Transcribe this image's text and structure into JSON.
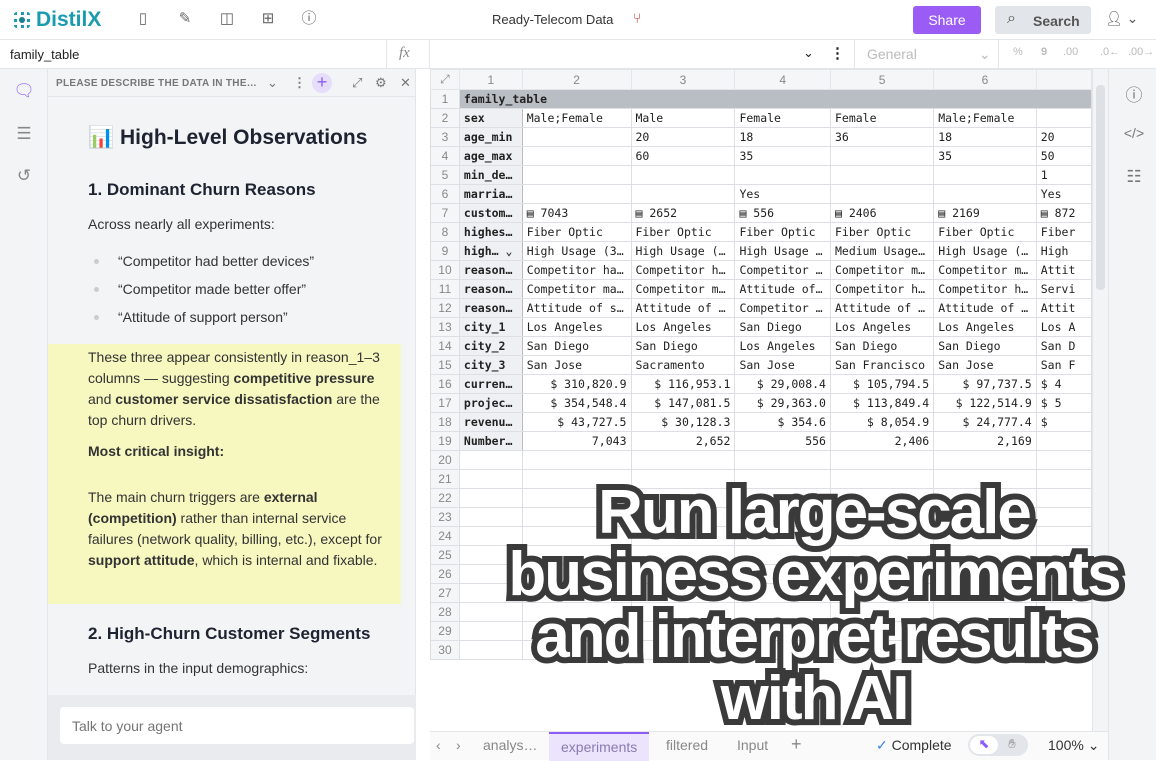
{
  "app": {
    "brand": "DistilX",
    "doc_title": "Ready-Telecom Data",
    "share_label": "Share",
    "search_label": "Search",
    "icons": [
      "file-icon",
      "edit-icon",
      "layout-icon",
      "add-box-icon",
      "help-icon"
    ],
    "accent": "#9b5cf6",
    "brand_color": "#1a9bb0"
  },
  "formula_bar": {
    "name_box": "family_table",
    "formula": "",
    "number_format": "General",
    "format_icons": [
      "%",
      "9",
      ".00",
      ".0←",
      ".00→"
    ]
  },
  "agent_panel": {
    "title": "PLEASE DESCRIBE THE DATA IN THE…",
    "heading": "High-Level Observations",
    "heading_emoji": "📊",
    "section1": "1. Dominant Churn Reasons",
    "intro": "Across nearly all experiments:",
    "bullets": [
      "“Competitor had better devices”",
      "“Competitor made better offer”",
      "“Attitude of support person”"
    ],
    "highlight_p1_a": "These three appear consistently in reason_1–3 columns — suggesting ",
    "highlight_p1_b": "competitive pressure",
    "highlight_p1_c": " and ",
    "highlight_p1_d": "customer service dissatisfaction",
    "highlight_p1_e": " are the top churn drivers.",
    "critical_label": "Most critical insight:",
    "p2_a": "The main churn triggers are ",
    "p2_b": "external (competition)",
    "p2_c": " rather than internal service failures (network quality, billing, etc.), except for ",
    "p2_d": "support attitude",
    "p2_e": ", which is internal and fixable.",
    "section2": "2. High-Churn Customer Segments",
    "intro2": "Patterns in the input demographics:",
    "chat_placeholder": "Talk to your agent"
  },
  "sheet": {
    "col_headers": [
      "1",
      "2",
      "3",
      "4",
      "5",
      "6",
      ""
    ],
    "rows": [
      [
        "family_table"
      ],
      [
        "sex",
        "Male;Female",
        "Male",
        "Female",
        "Female",
        "Male;Female",
        ""
      ],
      [
        "age_min",
        "",
        "20",
        "18",
        "36",
        "18",
        "20"
      ],
      [
        "age_max",
        "",
        "60",
        "35",
        "",
        "35",
        "50"
      ],
      [
        "min_de…",
        "",
        "",
        "",
        "",
        "",
        "1"
      ],
      [
        "marria…",
        "",
        "",
        "Yes",
        "",
        "",
        "Yes"
      ],
      [
        "custom…",
        "▤ 7043",
        "▤ 2652",
        "▤ 556",
        "▤ 2406",
        "▤ 2169",
        "▤ 872"
      ],
      [
        "highes…",
        "Fiber Optic",
        "Fiber Optic",
        "Fiber Optic",
        "Fiber Optic",
        "Fiber Optic",
        "Fiber"
      ],
      [
        "high…  ⌄",
        "High Usage (3…",
        "High Usage (…",
        "High Usage …",
        "Medium Usage…",
        "High Usage (…",
        "High"
      ],
      [
        "reason…",
        "Competitor ha…",
        "Competitor h…",
        "Competitor …",
        "Competitor m…",
        "Competitor m…",
        "Attit"
      ],
      [
        "reason…",
        "Competitor ma…",
        "Competitor m…",
        "Attitude of…",
        "Competitor h…",
        "Competitor h…",
        "Servi"
      ],
      [
        "reason…",
        "Attitude of s…",
        "Attitude of …",
        "Competitor …",
        "Attitude of …",
        "Attitude of …",
        "Attit"
      ],
      [
        "city_1",
        "Los Angeles",
        "Los Angeles",
        "San Diego",
        "Los Angeles",
        "Los Angeles",
        "Los A"
      ],
      [
        "city_2",
        "San Diego",
        "San Diego",
        "Los Angeles",
        "San Diego",
        "San Diego",
        "San D"
      ],
      [
        "city_3",
        "San Jose",
        "Sacramento",
        "San Jose",
        "San Francisco",
        "San Jose",
        "San F"
      ],
      [
        "curren…",
        "$ 310,820.9",
        "$ 116,953.1",
        "$ 29,008.4",
        "$ 105,794.5",
        "$ 97,737.5",
        "$ 4"
      ],
      [
        "projec…",
        "$ 354,548.4",
        "$ 147,081.5",
        "$ 29,363.0",
        "$ 113,849.4",
        "$ 122,514.9",
        "$ 5"
      ],
      [
        "revenu…",
        "$ 43,727.5",
        "$ 30,128.3",
        "$ 354.6",
        "$ 8,054.9",
        "$ 24,777.4",
        "$"
      ],
      [
        "Number…",
        "7,043",
        "2,652",
        "556",
        "2,406",
        "2,169",
        ""
      ]
    ],
    "empty_rows_through": 30
  },
  "tabs": {
    "items": [
      "analys…",
      "experiments",
      "filtered",
      "Input"
    ],
    "active": "experiments",
    "status": "Complete",
    "zoom": "100%"
  },
  "overlay": {
    "lines": [
      "Run large-scale",
      "business experiments",
      "and interpret results with AI"
    ]
  }
}
